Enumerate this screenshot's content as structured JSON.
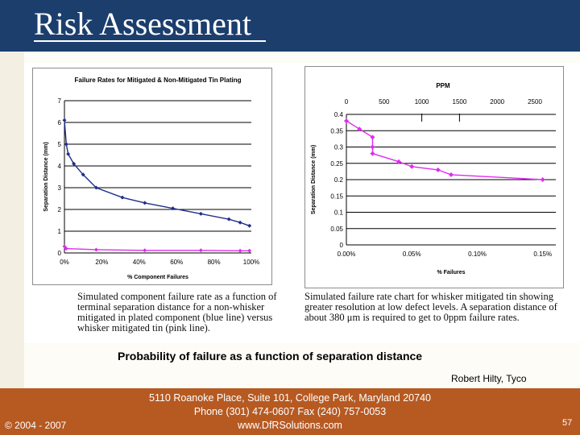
{
  "slide": {
    "title": "Risk Assessment",
    "caption": "Probability of failure as a function of separation distance",
    "credit": "Robert Hilty, Tyco",
    "footer": {
      "copyright": "© 2004 - 2007",
      "address_line1": "5110 Roanoke Place, Suite 101, College Park, Maryland 20740",
      "address_line2": "Phone (301) 474-0607  Fax (240) 757-0053",
      "address_line3": "www.DfRSolutions.com",
      "page_number": "57"
    }
  },
  "figure": {
    "left_caption": "Simulated component failure rate as a function of terminal separation distance for a non-whisker mitigated in plated component (blue line) versus whisker mitigated tin (pink line).",
    "right_caption": "Simulated failure rate chart for whisker mitigated tin showing greater resolution at low defect levels.  A separation distance of about 380 μm is required to get to 0ppm failure rates."
  },
  "chart_data": [
    {
      "type": "line",
      "title": "Failure Rates for Mitigated & Non-Mitigated Tin Plating",
      "xlabel": "% Component Failures",
      "ylabel": "Separation Distance (mm)",
      "xlim": [
        0,
        100
      ],
      "ylim": [
        0,
        7
      ],
      "x_ticks": [
        0,
        20,
        40,
        60,
        80,
        100
      ],
      "x_tick_labels": [
        "0%",
        "20%",
        "40%",
        "60%",
        "80%",
        "100%"
      ],
      "y_ticks": [
        0,
        1,
        2,
        3,
        4,
        5,
        6,
        7
      ],
      "y_tick_labels": [
        "0",
        "1",
        "2",
        "3",
        "4",
        "5",
        "6",
        "7"
      ],
      "grid": true,
      "series": [
        {
          "color": "#1f2f8a",
          "x": [
            0,
            1,
            2,
            5,
            10,
            17,
            31,
            43,
            58,
            73,
            88,
            94,
            99
          ],
          "y": [
            6.1,
            5.0,
            4.55,
            4.1,
            3.6,
            3.0,
            2.55,
            2.3,
            2.05,
            1.8,
            1.55,
            1.4,
            1.25
          ]
        },
        {
          "color": "#e02cf0",
          "x": [
            0,
            1,
            17,
            43,
            73,
            94,
            99
          ],
          "y": [
            0.3,
            0.2,
            0.15,
            0.12,
            0.12,
            0.1,
            0.1
          ]
        }
      ]
    },
    {
      "type": "line",
      "title": "PPM",
      "xlabel": "% Failures",
      "ylabel": "Separation Distance (mm)",
      "xlim": [
        0,
        0.16
      ],
      "ylim": [
        0,
        0.4
      ],
      "x_ticks": [
        0,
        0.05,
        0.1,
        0.15
      ],
      "x_tick_labels": [
        "0.00%",
        "0.05%",
        "0.10%",
        "0.15%"
      ],
      "top_ticks": [
        0,
        500,
        1000,
        1500,
        2000,
        2500
      ],
      "top_tick_labels": [
        "0",
        "500",
        "1000",
        "1500",
        "2000",
        "2500"
      ],
      "y_ticks": [
        0,
        0.05,
        0.1,
        0.15,
        0.2,
        0.25,
        0.3,
        0.35,
        0.4
      ],
      "y_tick_labels": [
        "0",
        "0.05",
        "0.1",
        "0.15",
        "0.2",
        "0.25",
        "0.3",
        "0.35",
        "0.4"
      ],
      "grid": true,
      "series": [
        {
          "color": "#e02cf0",
          "x": [
            0,
            0.01,
            0.02,
            0.02,
            0.02,
            0.04,
            0.05,
            0.07,
            0.08,
            0.15
          ],
          "y": [
            0.38,
            0.355,
            0.33,
            0.3,
            0.28,
            0.255,
            0.24,
            0.23,
            0.215,
            0.2
          ]
        }
      ]
    }
  ]
}
